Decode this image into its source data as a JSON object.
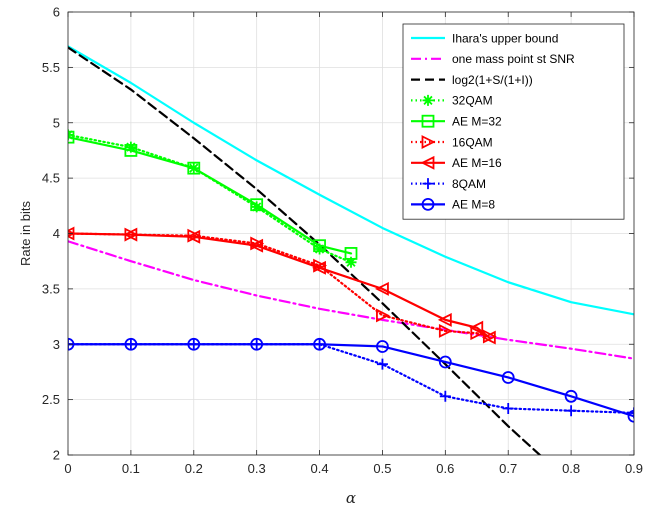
{
  "chart_data": {
    "type": "line",
    "title": "",
    "xlabel": "α",
    "ylabel": "Rate in bits",
    "xlim": [
      0,
      0.9
    ],
    "ylim": [
      2,
      6
    ],
    "xticks": [
      0,
      0.1,
      0.2,
      0.3,
      0.4,
      0.5,
      0.6,
      0.7,
      0.8,
      0.9
    ],
    "xtick_labels": [
      "0",
      "0.1",
      "0.2",
      "0.3",
      "0.4",
      "0.5",
      "0.6",
      "0.7",
      "0.8",
      "0.9"
    ],
    "yticks": [
      2,
      2.5,
      3,
      3.5,
      4,
      4.5,
      5,
      5.5,
      6
    ],
    "ytick_labels": [
      "2",
      "2.5",
      "3",
      "3.5",
      "4",
      "4.5",
      "5",
      "5.5",
      "6"
    ],
    "grid": true,
    "legend_position": "top-right",
    "series": [
      {
        "name": "Ihara's upper bound",
        "color": "#00FFFF",
        "dash": "solid",
        "marker": "none",
        "x": [
          0,
          0.1,
          0.2,
          0.3,
          0.4,
          0.5,
          0.6,
          0.7,
          0.8,
          0.9
        ],
        "y": [
          5.69,
          5.36,
          5.0,
          4.66,
          4.35,
          4.05,
          3.79,
          3.56,
          3.38,
          3.27
        ]
      },
      {
        "name": "one mass point st SNR",
        "color": "#FF00FF",
        "dash": "dashdot",
        "marker": "none",
        "x": [
          0,
          0.1,
          0.2,
          0.3,
          0.4,
          0.5,
          0.6,
          0.7,
          0.8,
          0.9
        ],
        "y": [
          3.93,
          3.75,
          3.58,
          3.44,
          3.32,
          3.22,
          3.13,
          3.04,
          2.96,
          2.87
        ]
      },
      {
        "name": "log2(1+S/(1+I))",
        "color": "#000000",
        "dash": "dashed",
        "marker": "none",
        "x": [
          0,
          0.1,
          0.2,
          0.3,
          0.4,
          0.5,
          0.6,
          0.7,
          0.76
        ],
        "y": [
          5.68,
          5.3,
          4.86,
          4.4,
          3.9,
          3.37,
          2.82,
          2.26,
          1.95
        ]
      },
      {
        "name": "32QAM",
        "color": "#00FF00",
        "dash": "dotted",
        "marker": "asterisk",
        "x": [
          0,
          0.1,
          0.2,
          0.3,
          0.4,
          0.45
        ],
        "y": [
          4.89,
          4.78,
          4.59,
          4.24,
          3.86,
          3.74
        ]
      },
      {
        "name": "AE M=32",
        "color": "#00FF00",
        "dash": "solid",
        "marker": "square",
        "x": [
          0,
          0.1,
          0.2,
          0.3,
          0.4,
          0.45
        ],
        "y": [
          4.87,
          4.75,
          4.59,
          4.26,
          3.89,
          3.82
        ]
      },
      {
        "name": "16QAM",
        "color": "#FF0000",
        "dash": "dotted",
        "marker": "triangle-right",
        "x": [
          0,
          0.1,
          0.2,
          0.3,
          0.4,
          0.5,
          0.6,
          0.65,
          0.67
        ],
        "y": [
          4.0,
          3.99,
          3.98,
          3.91,
          3.71,
          3.26,
          3.12,
          3.1,
          3.07
        ]
      },
      {
        "name": "AE M=16",
        "color": "#FF0000",
        "dash": "solid",
        "marker": "triangle-left",
        "x": [
          0,
          0.1,
          0.2,
          0.3,
          0.4,
          0.5,
          0.6,
          0.65,
          0.67
        ],
        "y": [
          4.0,
          3.99,
          3.97,
          3.89,
          3.69,
          3.5,
          3.22,
          3.15,
          3.06
        ]
      },
      {
        "name": "8QAM",
        "color": "#0000FF",
        "dash": "dotted",
        "marker": "plus",
        "x": [
          0,
          0.1,
          0.2,
          0.3,
          0.4,
          0.5,
          0.6,
          0.7,
          0.8,
          0.9
        ],
        "y": [
          3.0,
          3.0,
          3.0,
          3.0,
          3.0,
          2.82,
          2.53,
          2.42,
          2.4,
          2.38
        ]
      },
      {
        "name": "AE M=8",
        "color": "#0000FF",
        "dash": "solid",
        "marker": "circle",
        "x": [
          0,
          0.1,
          0.2,
          0.3,
          0.4,
          0.5,
          0.6,
          0.7,
          0.8,
          0.9
        ],
        "y": [
          3.0,
          3.0,
          3.0,
          3.0,
          3.0,
          2.98,
          2.84,
          2.7,
          2.53,
          2.35
        ]
      }
    ]
  }
}
